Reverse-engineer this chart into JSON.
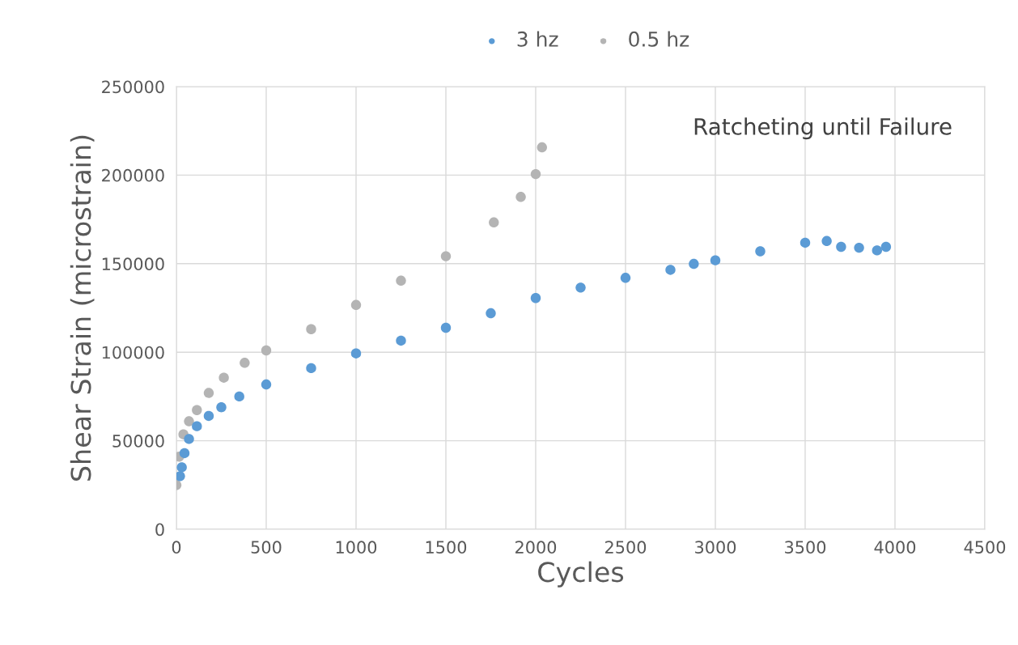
{
  "chart_data": {
    "type": "scatter",
    "xlabel": "Cycles",
    "ylabel": "Shear Strain (microstrain)",
    "annotations": [
      "Ratcheting until Failure"
    ],
    "series": [
      {
        "name": "3 hz",
        "color": "#5b9bd5",
        "x": [
          20,
          30,
          45,
          70,
          114,
          180,
          250,
          350,
          500,
          750,
          1000,
          1250,
          1500,
          1750,
          2000,
          2250,
          2500,
          2750,
          2880,
          3000,
          3250,
          3500,
          3620,
          3700,
          3800,
          3900,
          3950
        ],
        "values": [
          30000,
          35000,
          43000,
          51000,
          58200,
          64000,
          68900,
          75000,
          81800,
          91000,
          99300,
          106500,
          113800,
          122000,
          130600,
          136500,
          142000,
          146500,
          149900,
          151900,
          157000,
          161800,
          162800,
          159500,
          159000,
          157500,
          159500
        ]
      },
      {
        "name": "0.5 hz",
        "color": "#b4b4b4",
        "x": [
          0,
          15,
          39,
          70,
          114,
          180,
          264,
          380,
          500,
          750,
          1000,
          1250,
          1500,
          1767,
          1917,
          2000,
          2035
        ],
        "values": [
          25000,
          41000,
          53600,
          61000,
          67300,
          77000,
          85600,
          94000,
          101000,
          113000,
          126700,
          140400,
          154200,
          173300,
          187700,
          200600,
          215700
        ]
      }
    ],
    "xlim": [
      0,
      4500
    ],
    "xticks": [
      0,
      500,
      1000,
      1500,
      2000,
      2500,
      3000,
      3500,
      4000,
      4500
    ],
    "ylim": [
      0,
      250000
    ],
    "yticks": [
      0,
      50000,
      100000,
      150000,
      200000,
      250000
    ],
    "grid": true,
    "legend": "top",
    "marker": "circle"
  }
}
